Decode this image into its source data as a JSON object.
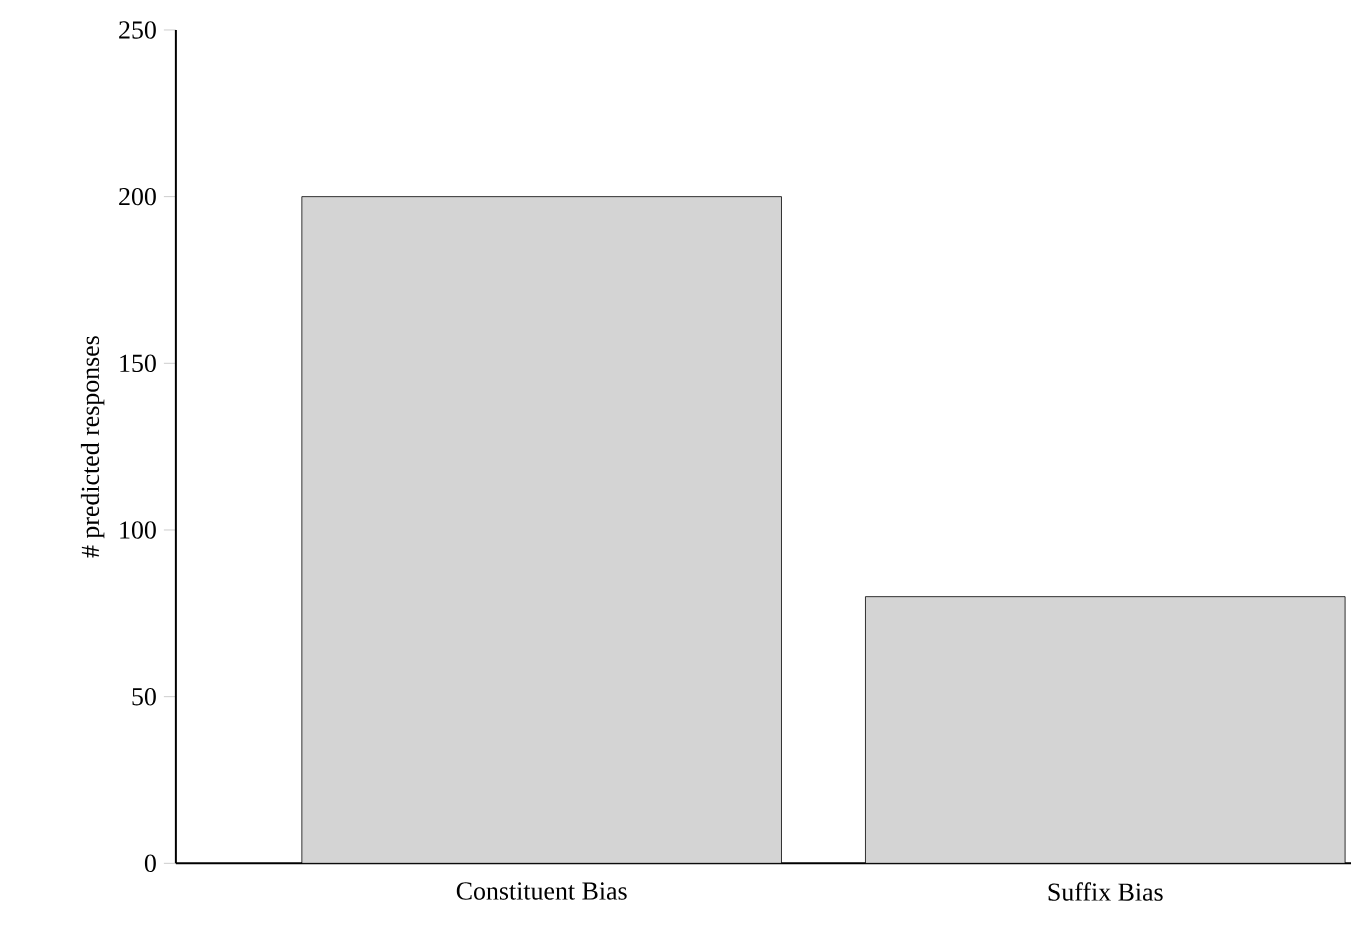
{
  "chart_data": {
    "type": "bar",
    "categories": [
      "Constituent Bias",
      "Suffix Bias"
    ],
    "values": [
      200,
      80
    ],
    "color": "#d4d4d4",
    "ylabel": "# predicted responses",
    "ylim": [
      0,
      250
    ],
    "yticks": [
      0,
      50,
      100,
      150,
      200,
      250
    ],
    "grid": false
  }
}
